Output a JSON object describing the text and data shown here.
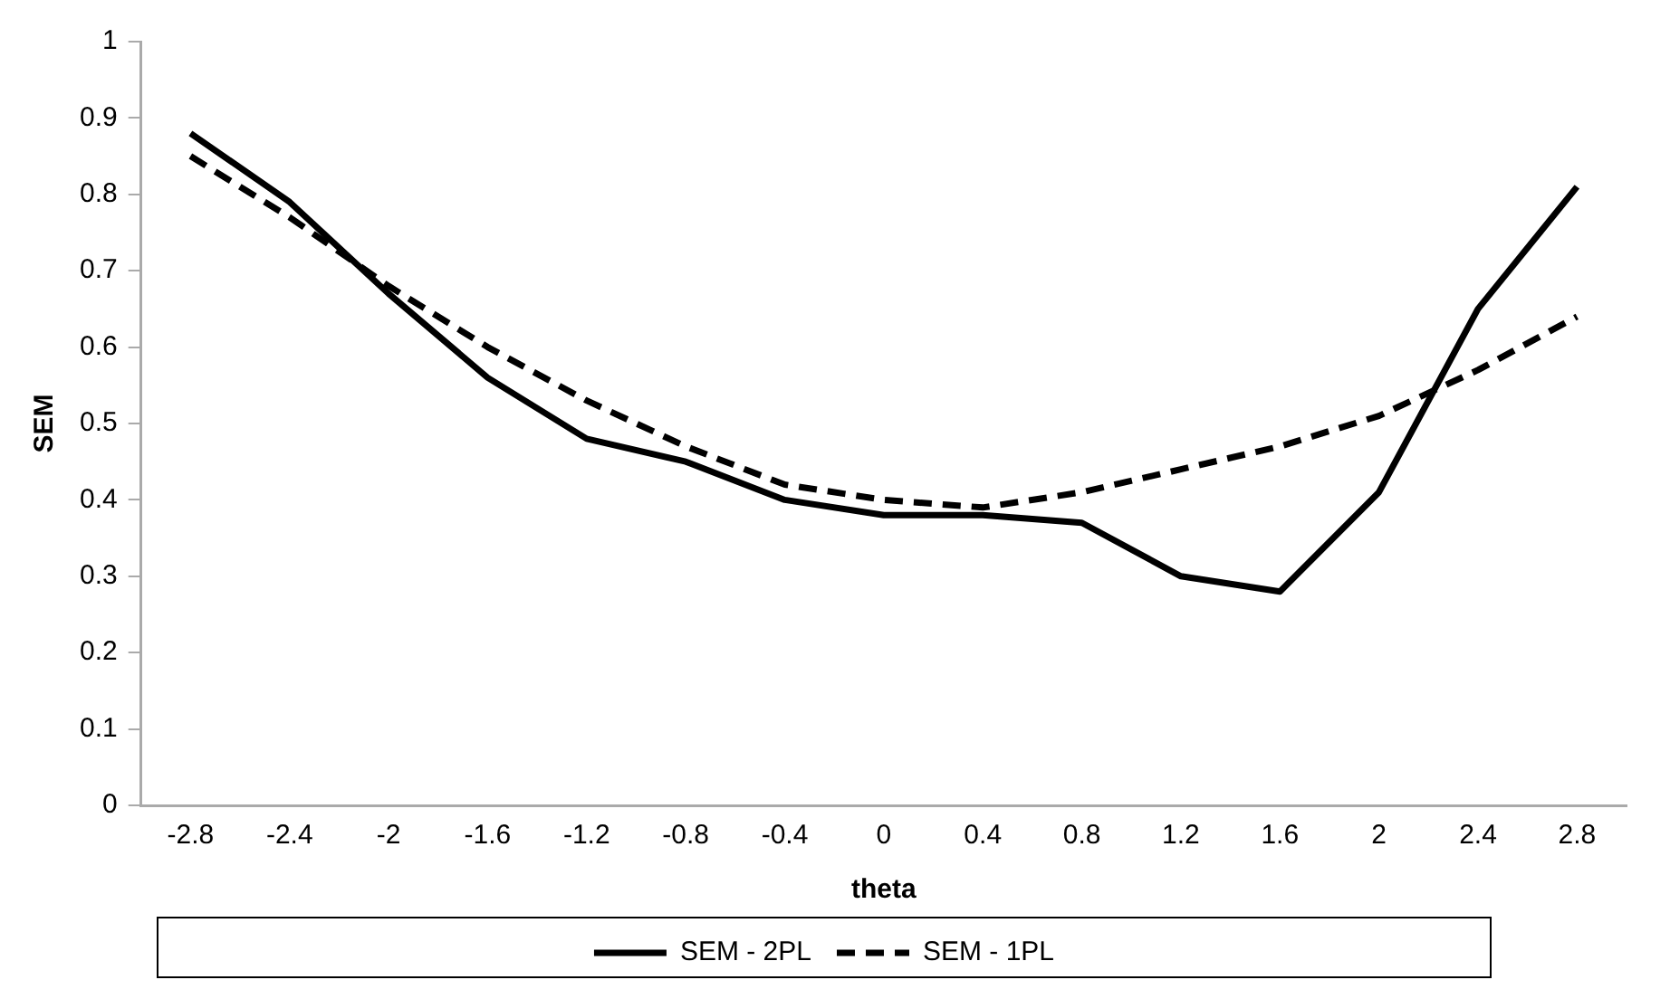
{
  "chart_data": {
    "type": "line",
    "xlabel": "theta",
    "ylabel": "SEM",
    "categories": [
      "-2.8",
      "-2.4",
      "-2",
      "-1.6",
      "-1.2",
      "-0.8",
      "-0.4",
      "0",
      "0.4",
      "0.8",
      "1.2",
      "1.6",
      "2",
      "2.4",
      "2.8"
    ],
    "series": [
      {
        "name": "SEM - 2PL",
        "color": "#000000",
        "line_style": "solid",
        "values": [
          0.88,
          0.79,
          0.67,
          0.56,
          0.48,
          0.45,
          0.4,
          0.38,
          0.38,
          0.37,
          0.3,
          0.28,
          0.41,
          0.65,
          0.81
        ]
      },
      {
        "name": "SEM - 1PL",
        "color": "#000000",
        "line_style": "dashed",
        "values": [
          0.85,
          0.77,
          0.68,
          0.6,
          0.53,
          0.47,
          0.42,
          0.4,
          0.39,
          0.41,
          0.44,
          0.47,
          0.51,
          0.57,
          0.64
        ]
      }
    ],
    "ylim": [
      0,
      1
    ],
    "yticks": [
      0,
      0.1,
      0.2,
      0.3,
      0.4,
      0.5,
      0.6,
      0.7,
      0.8,
      0.9,
      1
    ],
    "grid": false,
    "legend": "bottom",
    "marker": "none"
  }
}
